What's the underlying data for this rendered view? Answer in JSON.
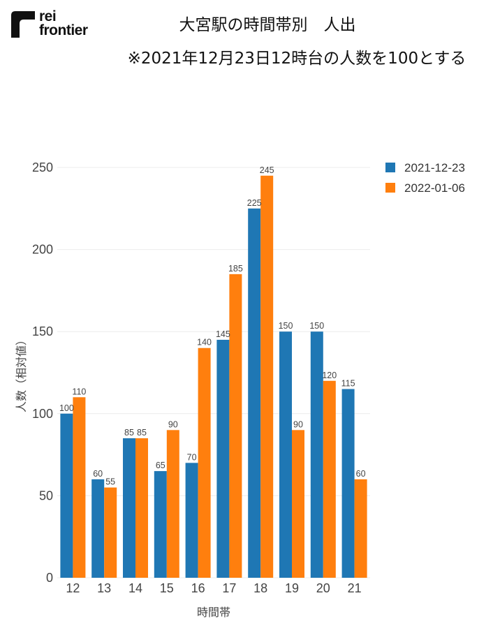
{
  "logo": {
    "line1": "rei",
    "line2": "frontier"
  },
  "title": {
    "line1": "大宮駅の時間帯別　人出",
    "line2": "※2021年12月23日12時台の人数を100とする"
  },
  "colors": {
    "series1": "#1f77b4",
    "series2": "#ff7f0e"
  },
  "chart_data": {
    "type": "bar",
    "title": "大宮駅の時間帯別　人出",
    "xlabel": "時間帯",
    "ylabel": "人数（相対値）",
    "ylim": [
      0,
      250
    ],
    "yticks": [
      0,
      50,
      100,
      150,
      200,
      250
    ],
    "grid": true,
    "legend_position": "top-right",
    "categories": [
      "12",
      "13",
      "14",
      "15",
      "16",
      "17",
      "18",
      "19",
      "20",
      "21"
    ],
    "series": [
      {
        "name": "2021-12-23",
        "values": [
          100,
          60,
          85,
          65,
          70,
          145,
          225,
          150,
          150,
          115
        ]
      },
      {
        "name": "2022-01-06",
        "values": [
          110,
          55,
          85,
          90,
          140,
          185,
          245,
          90,
          120,
          60
        ]
      }
    ]
  }
}
